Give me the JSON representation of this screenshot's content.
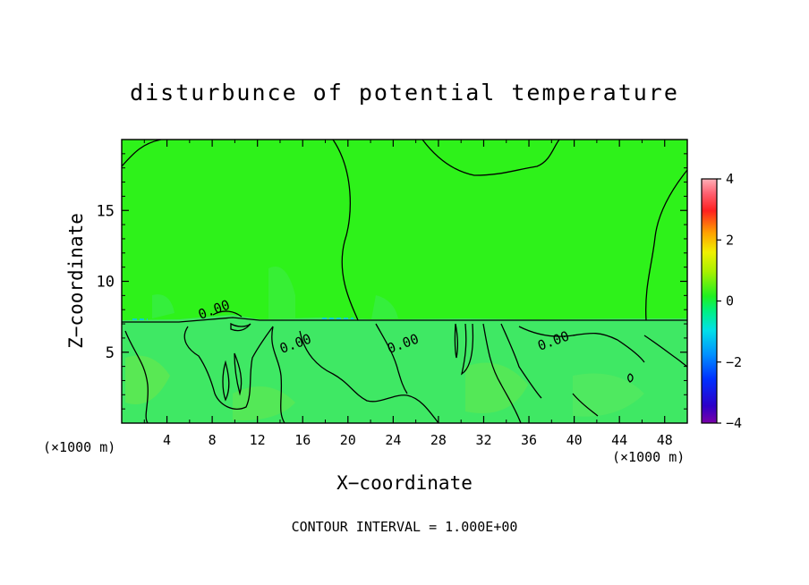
{
  "chart_data": {
    "type": "heatmap",
    "title": "disturbunce of potential temperature",
    "xlabel": "X−coordinate",
    "ylabel": "Z−coordinate",
    "x_unit_left": "(×1000 m)",
    "x_unit_right": "(×1000 m)",
    "footer": "CONTOUR INTERVAL = 1.000E+00",
    "xlim": [
      0,
      50
    ],
    "ylim": [
      0,
      20
    ],
    "x_ticks": [
      4,
      8,
      12,
      16,
      20,
      24,
      28,
      32,
      36,
      40,
      44,
      48
    ],
    "y_ticks": [
      5,
      10,
      15
    ],
    "colorbar": {
      "range": [
        -4,
        4
      ],
      "ticks": [
        4,
        2,
        0,
        -2,
        -4
      ],
      "tick_labels": [
        "4",
        "2",
        "0",
        "−2",
        "−4"
      ]
    },
    "contour_labels": [
      {
        "text": "0.00",
        "x": 8.3,
        "z": 7.7
      },
      {
        "text": "0.00",
        "x": 15.5,
        "z": 5.3
      },
      {
        "text": "0.00",
        "x": 25.0,
        "z": 5.3
      },
      {
        "text": "0.00",
        "x": 38.3,
        "z": 5.5
      }
    ],
    "colors": {
      "field_background": "#2ef21a",
      "lower_layer": "#3fe864",
      "contour": "#000000"
    }
  }
}
